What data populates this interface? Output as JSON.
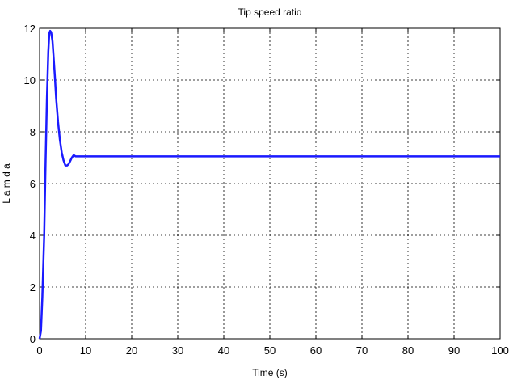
{
  "chart_data": {
    "type": "line",
    "title": "Tip speed ratio",
    "xlabel": "Time (s)",
    "ylabel": "L a m d a",
    "xlim": [
      0,
      100
    ],
    "ylim": [
      0,
      12
    ],
    "xticks": [
      0,
      10,
      20,
      30,
      40,
      50,
      60,
      70,
      80,
      90,
      100
    ],
    "yticks": [
      0,
      2,
      4,
      6,
      8,
      10,
      12
    ],
    "grid": true,
    "grid_style": "dotted",
    "series": [
      {
        "color": "#1a1aff",
        "x": [
          0,
          0.3,
          0.6,
          1.0,
          1.3,
          1.6,
          1.9,
          2.1,
          2.3,
          2.5,
          2.8,
          3.0,
          3.3,
          3.6,
          4.0,
          4.4,
          4.8,
          5.2,
          5.6,
          6.0,
          6.3,
          6.6,
          7.0,
          7.4,
          7.8,
          8.5,
          10,
          15,
          20,
          30,
          40,
          50,
          60,
          70,
          80,
          90,
          100
        ],
        "y": [
          0,
          0.3,
          1.6,
          4.0,
          6.8,
          9.3,
          11.1,
          11.8,
          11.9,
          11.85,
          11.5,
          11.0,
          10.2,
          9.3,
          8.4,
          7.7,
          7.2,
          6.9,
          6.7,
          6.7,
          6.75,
          6.85,
          7.0,
          7.1,
          7.05,
          7.05,
          7.05,
          7.05,
          7.05,
          7.05,
          7.05,
          7.05,
          7.05,
          7.05,
          7.05,
          7.05,
          7.05
        ]
      }
    ]
  }
}
